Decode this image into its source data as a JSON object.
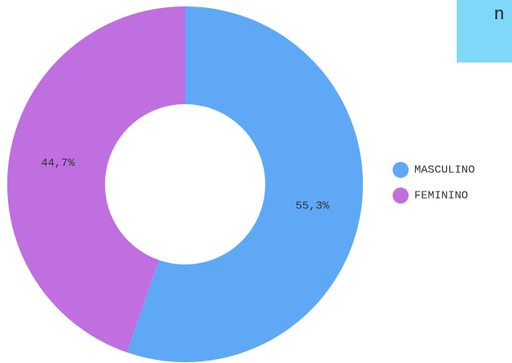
{
  "badge": {
    "text": "n"
  },
  "chart_data": {
    "type": "donut",
    "categories": [
      "MASCULINO",
      "FEMININO"
    ],
    "values": [
      55.3,
      44.7
    ],
    "value_labels": [
      "55,3%",
      "44,7%"
    ],
    "colors": [
      "#5fa8f5",
      "#bf6fdf"
    ],
    "legend": "right"
  }
}
